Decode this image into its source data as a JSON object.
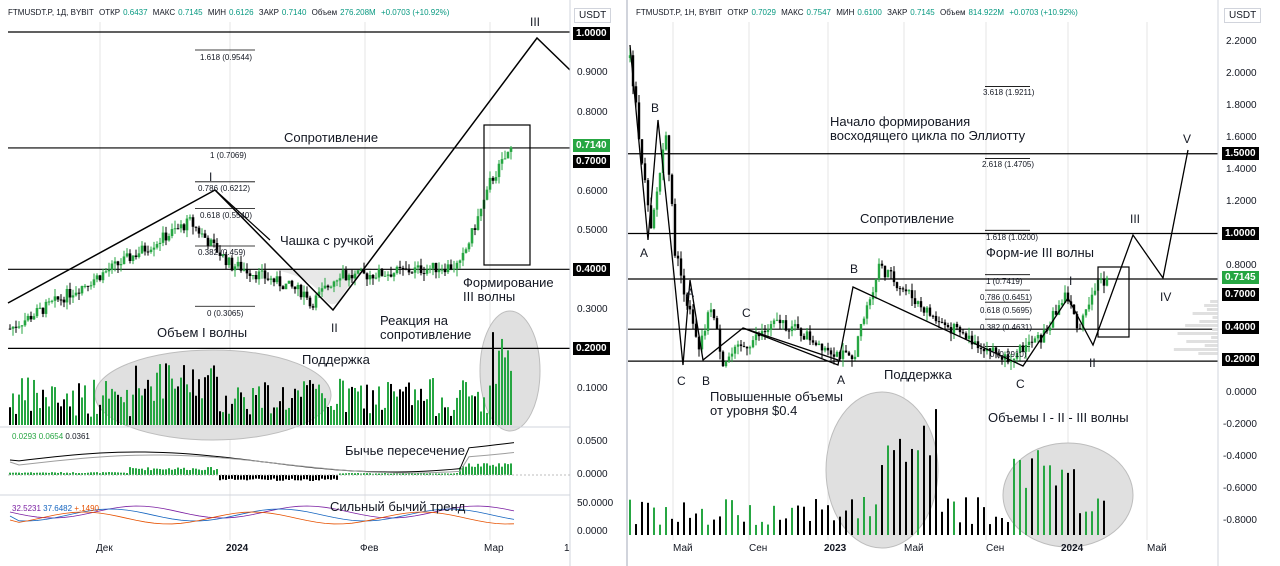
{
  "left": {
    "header": {
      "symbol": "FTMUSDT.P, 1Д, BYBIT",
      "open_label": "ОТКР",
      "open": "0.6437",
      "high_label": "МАКС",
      "high": "0.7145",
      "low_label": "МИН",
      "low": "0.6126",
      "close_label": "ЗАКР",
      "close": "0.7140",
      "volume_label": "Объем",
      "volume": "276.208M",
      "change": "+0.0703 (+10.92%)"
    },
    "unit": "USDT",
    "price_ticks": [
      "0.9000",
      "0.8000",
      "0.6000",
      "0.5000",
      "0.3000",
      "0.1000"
    ],
    "tags": {
      "t1": "1.0000",
      "t2": "0.7140",
      "t3": "0.7000",
      "t4": "0.4000",
      "t5": "0.2000"
    },
    "macd_ticks": [
      "0.0500",
      "0.0000"
    ],
    "rsi_ticks": [
      "50.0000",
      "0.0000"
    ],
    "x_ticks": {
      "t1": "Дек",
      "t2": "2024",
      "t3": "Фев",
      "t4": "Мар",
      "t5": "1"
    },
    "annotations": {
      "resistance": "Сопротивление",
      "cup": "Чашка с ручкой",
      "forming_l1": "Формирование",
      "forming_l2": "III волны",
      "volume1": "Объем I волны",
      "reaction_l1": "Реакция на",
      "reaction_l2": "сопротивление",
      "support": "Поддержка",
      "bull_cross": "Бычье пересечение",
      "strong_trend": "Сильный бычий тренд"
    },
    "fib": {
      "f1": "1.618 (0.9544)",
      "f2": "1 (0.7069)",
      "f3": "0.786 (0.6212)",
      "f4": "0.618 (0.5540)",
      "f5": "0.382 (0.459)",
      "f6": "0 (0.3065)"
    },
    "waves": {
      "w1": "I",
      "w2": "II",
      "w3": "III"
    },
    "macd_values": {
      "v1": "0.0293",
      "v2": "0.0654",
      "v3": "0.0361"
    },
    "rsi_values": {
      "v1": "32.5231",
      "v2": "37.6482",
      "v3": "+.1490"
    }
  },
  "right": {
    "header": {
      "symbol": "FTMUSDT.P, 1Н, BYBIT",
      "open_label": "ОТКР",
      "open": "0.7029",
      "high_label": "МАКС",
      "high": "0.7547",
      "low_label": "МИН",
      "low": "0.6100",
      "close_label": "ЗАКР",
      "close": "0.7145",
      "volume_label": "Объем",
      "volume": "814.922M",
      "change": "+0.0703 (+10.92%)"
    },
    "unit": "USDT",
    "price_ticks": [
      "2.2000",
      "2.0000",
      "1.8000",
      "1.6000",
      "1.4000",
      "1.2000",
      "0.8000",
      "0.0000",
      "-0.2000",
      "-0.4000",
      "-0.6000",
      "-0.8000"
    ],
    "tags": {
      "t1": "1.5000",
      "t2": "1.0000",
      "t3": "0.7145",
      "t4": "0.7000",
      "t5": "0.4000",
      "t6": "0.2000"
    },
    "x_ticks": {
      "t1": "Май",
      "t2": "Сен",
      "t3": "2023",
      "t4": "Май",
      "t5": "Сен",
      "t6": "2024",
      "t7": "Май"
    },
    "annotations": {
      "elliott_l1": "Начало формирования",
      "elliott_l2": "восходящего цикла по Эллиотту",
      "resistance": "Сопротивление",
      "form3": "Форм-ие III волны",
      "support": "Поддержка",
      "vol_l1": "Повышенные объемы",
      "vol_l2": "от уровня $0.4",
      "vol123": "Объемы I - II - III волны"
    },
    "fib": {
      "f1": "3.618 (1.9211)",
      "f2": "2.618 (1.4705)",
      "f3": "1.618 (1.0200)",
      "f4": "1 (0.7419)",
      "f5": "0.786 (0.6451)",
      "f6": "0.618 (0.5695)",
      "f7": "0.382 (0.4631)",
      "f8": "0 (0.2910)"
    },
    "waves": {
      "b1": "B",
      "a1": "A",
      "a2": "A",
      "c1": "C",
      "b2": "B",
      "c2": "C",
      "a3": "A",
      "b3": "B",
      "c3": "C",
      "i": "I",
      "ii": "II",
      "iii": "III",
      "iv": "IV",
      "v": "V"
    }
  },
  "colors": {
    "up": "#26a642",
    "down": "#000000",
    "grid": "#e6e6e6",
    "volume_ellipse": "#e0e0e0",
    "macd": "#000000",
    "signal": "#9e9e9e"
  }
}
